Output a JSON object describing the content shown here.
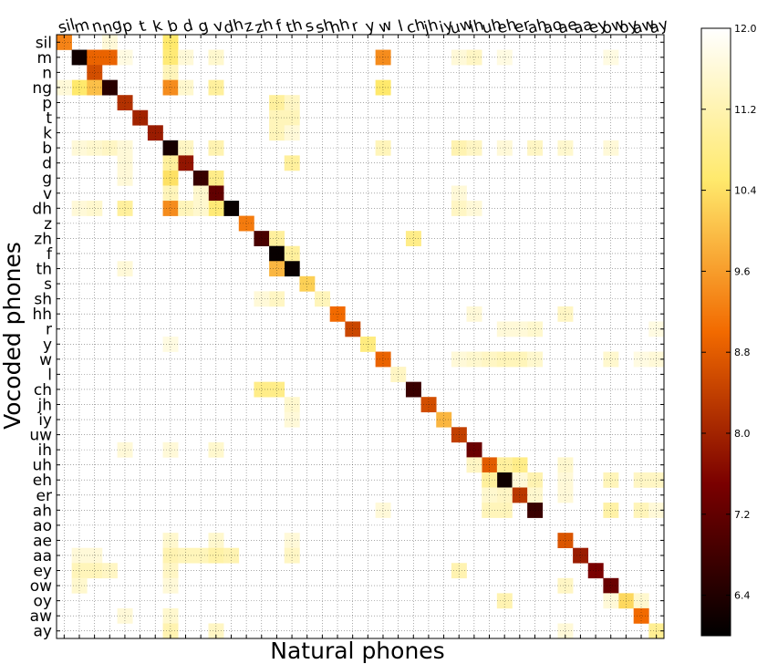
{
  "chart_data": {
    "type": "heatmap",
    "title": "",
    "xlabel": "Natural phones",
    "ylabel": "Vocoded phones",
    "x_categories": [
      "sil",
      "m",
      "n",
      "ng",
      "p",
      "t",
      "k",
      "b",
      "d",
      "g",
      "v",
      "dh",
      "z",
      "zh",
      "f",
      "th",
      "s",
      "sh",
      "hh",
      "r",
      "y",
      "w",
      "l",
      "ch",
      "jh",
      "iy",
      "uw",
      "ih",
      "uh",
      "eh",
      "er",
      "ah",
      "ao",
      "ae",
      "aa",
      "ey",
      "ow",
      "oy",
      "aw",
      "ay"
    ],
    "y_categories": [
      "sil",
      "m",
      "n",
      "ng",
      "p",
      "t",
      "k",
      "b",
      "d",
      "g",
      "v",
      "dh",
      "z",
      "zh",
      "f",
      "th",
      "s",
      "sh",
      "hh",
      "r",
      "y",
      "w",
      "l",
      "ch",
      "jh",
      "iy",
      "uw",
      "ih",
      "uh",
      "eh",
      "er",
      "ah",
      "ao",
      "ae",
      "aa",
      "ey",
      "ow",
      "oy",
      "aw",
      "ay"
    ],
    "colorbar": {
      "min": 6.0,
      "max": 12.0,
      "ticks": [
        "6.4",
        "7.2",
        "8.0",
        "8.8",
        "9.6",
        "10.4",
        "11.2",
        "12.0"
      ],
      "colormap": "afmhot"
    },
    "grid": true,
    "cells_note_value_units": "cell value; unlisted cells = 12.0 (white)",
    "cells": [
      [
        "sil",
        "sil",
        9.3
      ],
      [
        "sil",
        "b",
        10.5
      ],
      [
        "sil",
        "ng",
        11.6
      ],
      [
        "m",
        "m",
        6.2
      ],
      [
        "m",
        "n",
        8.9
      ],
      [
        "m",
        "ng",
        8.9
      ],
      [
        "m",
        "b",
        10.6
      ],
      [
        "m",
        "d",
        11.6
      ],
      [
        "m",
        "v",
        11.5
      ],
      [
        "m",
        "w",
        9.4
      ],
      [
        "m",
        "uw",
        11.6
      ],
      [
        "m",
        "ih",
        11.4
      ],
      [
        "m",
        "eh",
        11.7
      ],
      [
        "m",
        "ow",
        11.7
      ],
      [
        "m",
        "p",
        11.7
      ],
      [
        "n",
        "n",
        8.6
      ],
      [
        "n",
        "b",
        11.3
      ],
      [
        "ng",
        "m",
        10.5
      ],
      [
        "ng",
        "n",
        10.0
      ],
      [
        "ng",
        "ng",
        6.5
      ],
      [
        "ng",
        "b",
        9.4
      ],
      [
        "ng",
        "d",
        11.5
      ],
      [
        "ng",
        "v",
        11.0
      ],
      [
        "ng",
        "w",
        10.5
      ],
      [
        "ng",
        "sil",
        11.6
      ],
      [
        "p",
        "p",
        8.2
      ],
      [
        "p",
        "f",
        11.0
      ],
      [
        "p",
        "th",
        11.4
      ],
      [
        "t",
        "t",
        8.0
      ],
      [
        "t",
        "f",
        11.3
      ],
      [
        "t",
        "th",
        11.3
      ],
      [
        "k",
        "k",
        7.9
      ],
      [
        "k",
        "f",
        11.3
      ],
      [
        "k",
        "th",
        11.6
      ],
      [
        "b",
        "b",
        6.3
      ],
      [
        "b",
        "m",
        11.6
      ],
      [
        "b",
        "n",
        11.5
      ],
      [
        "b",
        "ng",
        11.4
      ],
      [
        "b",
        "d",
        11.4
      ],
      [
        "b",
        "v",
        11.2
      ],
      [
        "b",
        "w",
        11.3
      ],
      [
        "b",
        "uw",
        11.2
      ],
      [
        "b",
        "ih",
        11.4
      ],
      [
        "b",
        "eh",
        11.6
      ],
      [
        "b",
        "ah",
        11.4
      ],
      [
        "b",
        "ae",
        11.5
      ],
      [
        "b",
        "ow",
        11.6
      ],
      [
        "b",
        "p",
        11.6
      ],
      [
        "d",
        "d",
        7.8
      ],
      [
        "d",
        "b",
        11.0
      ],
      [
        "d",
        "th",
        11.0
      ],
      [
        "d",
        "p",
        11.6
      ],
      [
        "g",
        "g",
        6.7
      ],
      [
        "g",
        "b",
        10.4
      ],
      [
        "g",
        "v",
        10.8
      ],
      [
        "g",
        "p",
        11.6
      ],
      [
        "v",
        "v",
        7.2
      ],
      [
        "v",
        "b",
        11.3
      ],
      [
        "v",
        "g",
        11.5
      ],
      [
        "v",
        "uw",
        11.6
      ],
      [
        "dh",
        "dh",
        6.1
      ],
      [
        "dh",
        "b",
        9.4
      ],
      [
        "dh",
        "v",
        10.6
      ],
      [
        "dh",
        "p",
        11.0
      ],
      [
        "dh",
        "d",
        11.3
      ],
      [
        "dh",
        "g",
        11.5
      ],
      [
        "dh",
        "m",
        11.6
      ],
      [
        "dh",
        "n",
        11.5
      ],
      [
        "dh",
        "uw",
        11.4
      ],
      [
        "dh",
        "ih",
        11.6
      ],
      [
        "z",
        "z",
        9.2
      ],
      [
        "zh",
        "zh",
        6.9
      ],
      [
        "zh",
        "f",
        11.0
      ],
      [
        "zh",
        "ch",
        10.8
      ],
      [
        "f",
        "f",
        6.1
      ],
      [
        "f",
        "th",
        11.0
      ],
      [
        "th",
        "th",
        6.1
      ],
      [
        "th",
        "f",
        9.9
      ],
      [
        "th",
        "p",
        11.6
      ],
      [
        "s",
        "s",
        10.2
      ],
      [
        "sh",
        "sh",
        11.3
      ],
      [
        "sh",
        "f",
        11.4
      ],
      [
        "sh",
        "zh",
        11.6
      ],
      [
        "hh",
        "hh",
        9.0
      ],
      [
        "hh",
        "ih",
        11.6
      ],
      [
        "hh",
        "ae",
        11.4
      ],
      [
        "r",
        "r",
        8.5
      ],
      [
        "r",
        "eh",
        11.6
      ],
      [
        "r",
        "ah",
        11.5
      ],
      [
        "r",
        "er",
        11.6
      ],
      [
        "r",
        "ay",
        11.7
      ],
      [
        "y",
        "y",
        10.7
      ],
      [
        "y",
        "b",
        11.7
      ],
      [
        "w",
        "w",
        8.9
      ],
      [
        "w",
        "uw",
        11.6
      ],
      [
        "w",
        "ih",
        11.5
      ],
      [
        "w",
        "uh",
        11.4
      ],
      [
        "w",
        "eh",
        11.3
      ],
      [
        "w",
        "er",
        11.3
      ],
      [
        "w",
        "ah",
        11.5
      ],
      [
        "w",
        "ow",
        11.5
      ],
      [
        "w",
        "ay",
        11.6
      ],
      [
        "w",
        "aw",
        11.7
      ],
      [
        "l",
        "l",
        11.4
      ],
      [
        "ch",
        "ch",
        6.7
      ],
      [
        "ch",
        "zh",
        10.8
      ],
      [
        "ch",
        "f",
        10.8
      ],
      [
        "jh",
        "jh",
        8.6
      ],
      [
        "jh",
        "th",
        11.5
      ],
      [
        "iy",
        "iy",
        9.9
      ],
      [
        "iy",
        "th",
        11.6
      ],
      [
        "uw",
        "uw",
        8.4
      ],
      [
        "ih",
        "ih",
        7.3
      ],
      [
        "ih",
        "p",
        11.6
      ],
      [
        "ih",
        "b",
        11.6
      ],
      [
        "ih",
        "v",
        11.5
      ],
      [
        "uh",
        "uh",
        8.8
      ],
      [
        "uh",
        "er",
        10.8
      ],
      [
        "uh",
        "ih",
        11.4
      ],
      [
        "uh",
        "ae",
        11.5
      ],
      [
        "uh",
        "eh",
        11.0
      ],
      [
        "eh",
        "eh",
        6.2
      ],
      [
        "eh",
        "uh",
        11.0
      ],
      [
        "eh",
        "ah",
        11.2
      ],
      [
        "eh",
        "er",
        11.6
      ],
      [
        "eh",
        "ow",
        11.3
      ],
      [
        "eh",
        "aw",
        11.4
      ],
      [
        "eh",
        "ay",
        11.4
      ],
      [
        "eh",
        "ae",
        11.6
      ],
      [
        "er",
        "er",
        8.3
      ],
      [
        "er",
        "eh",
        11.4
      ],
      [
        "er",
        "uh",
        11.5
      ],
      [
        "er",
        "ah",
        11.5
      ],
      [
        "er",
        "ae",
        11.6
      ],
      [
        "ah",
        "ah",
        6.7
      ],
      [
        "ah",
        "uh",
        11.3
      ],
      [
        "ah",
        "eh",
        11.3
      ],
      [
        "ah",
        "ow",
        11.1
      ],
      [
        "ah",
        "aw",
        11.3
      ],
      [
        "ah",
        "ay",
        11.6
      ],
      [
        "ah",
        "w",
        11.6
      ],
      [
        "ae",
        "ae",
        8.7
      ],
      [
        "ae",
        "b",
        11.5
      ],
      [
        "ae",
        "v",
        11.5
      ],
      [
        "ae",
        "th",
        11.6
      ],
      [
        "aa",
        "aa",
        7.9
      ],
      [
        "aa",
        "b",
        11.2
      ],
      [
        "aa",
        "d",
        11.3
      ],
      [
        "aa",
        "g",
        11.3
      ],
      [
        "aa",
        "v",
        11.1
      ],
      [
        "aa",
        "dh",
        11.2
      ],
      [
        "aa",
        "th",
        11.4
      ],
      [
        "aa",
        "m",
        11.6
      ],
      [
        "aa",
        "n",
        11.6
      ],
      [
        "ey",
        "ey",
        7.5
      ],
      [
        "ey",
        "m",
        11.3
      ],
      [
        "ey",
        "n",
        11.3
      ],
      [
        "ey",
        "ng",
        11.4
      ],
      [
        "ey",
        "b",
        11.4
      ],
      [
        "ey",
        "uw",
        11.2
      ],
      [
        "ow",
        "ow",
        7.3
      ],
      [
        "ow",
        "b",
        11.6
      ],
      [
        "ow",
        "m",
        11.5
      ],
      [
        "ow",
        "ae",
        11.4
      ],
      [
        "oy",
        "oy",
        10.3
      ],
      [
        "oy",
        "eh",
        11.2
      ],
      [
        "oy",
        "aw",
        11.5
      ],
      [
        "oy",
        "ow",
        11.6
      ],
      [
        "aw",
        "aw",
        9.0
      ],
      [
        "aw",
        "p",
        11.6
      ],
      [
        "aw",
        "b",
        11.5
      ],
      [
        "ay",
        "ay",
        10.9
      ],
      [
        "ay",
        "b",
        11.2
      ],
      [
        "ay",
        "v",
        11.4
      ],
      [
        "ay",
        "ae",
        11.6
      ]
    ]
  }
}
